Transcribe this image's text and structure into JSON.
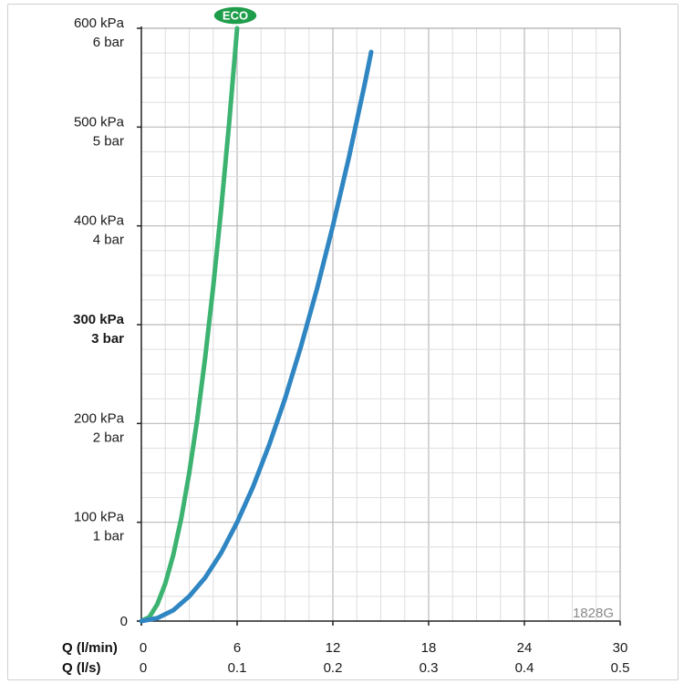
{
  "chart_data": {
    "type": "line",
    "x_primary": {
      "label": "Q (l/min)",
      "ticks": [
        0,
        6,
        12,
        18,
        24,
        30
      ],
      "tick_labels": [
        "0",
        "6",
        "12",
        "18",
        "24",
        "30"
      ],
      "range": [
        0,
        30
      ]
    },
    "x_secondary": {
      "label": "Q (l/s)",
      "tick_labels": [
        "0",
        "0.1",
        "0.2",
        "0.3",
        "0.4",
        "0.5"
      ]
    },
    "y_axis": {
      "ticks": [
        0,
        100,
        200,
        300,
        400,
        500,
        600
      ],
      "tick_labels_kpa": [
        "0",
        "100 kPa",
        "200 kPa",
        "300 kPa",
        "400 kPa",
        "500 kPa",
        "600 kPa"
      ],
      "tick_labels_bar": [
        "",
        "1 bar",
        "2 bar",
        "3 bar",
        "4 bar",
        "5 bar",
        "6 bar"
      ],
      "range": [
        0,
        600
      ],
      "bold_tick": 300
    },
    "grid": true,
    "series": [
      {
        "name": "ECO",
        "color": "#3cb371",
        "x": [
          0,
          0.5,
          1,
          1.5,
          2,
          2.5,
          3,
          3.5,
          4,
          4.5,
          5,
          5.5,
          6
        ],
        "y": [
          0,
          4,
          17,
          38,
          67,
          104,
          150,
          204,
          267,
          338,
          417,
          504,
          600
        ]
      },
      {
        "name": "",
        "color": "#2f86c2",
        "x": [
          0,
          1,
          2,
          3,
          4,
          5,
          6,
          7,
          8,
          9,
          10,
          11,
          12,
          13,
          14,
          14.4
        ],
        "y": [
          0,
          3,
          11,
          25,
          44,
          69,
          100,
          136,
          178,
          225,
          278,
          336,
          400,
          469,
          544,
          576
        ]
      }
    ],
    "eco_badge": {
      "label": "ECO",
      "color": "#1e9d4a"
    },
    "watermark": "1828G"
  }
}
